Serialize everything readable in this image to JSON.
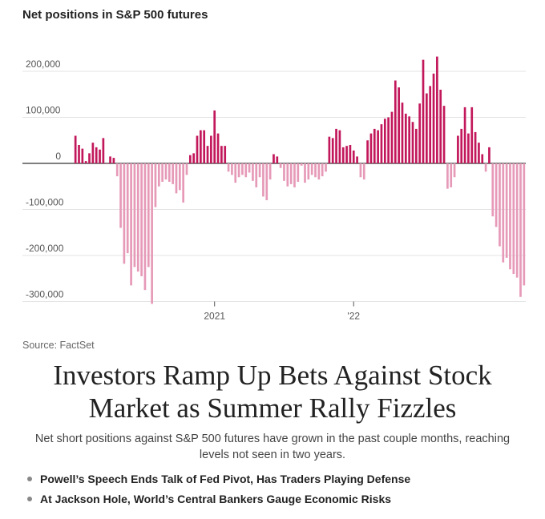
{
  "chart_data": {
    "type": "bar",
    "title": "Net positions in S&P 500 futures",
    "ylim": [
      -300000,
      240000
    ],
    "yticks": [
      {
        "value": 200000,
        "label": "200,000"
      },
      {
        "value": 100000,
        "label": "100,000"
      },
      {
        "value": 0,
        "label": "0"
      },
      {
        "value": -100000,
        "label": "-100,000"
      },
      {
        "value": -200000,
        "label": "-200,000"
      },
      {
        "value": -300000,
        "label": "-300,000"
      }
    ],
    "xticks": [
      {
        "index": 40,
        "label": "2021"
      },
      {
        "index": 80,
        "label": "'22"
      }
    ],
    "colors": {
      "positive": "#c2185b",
      "negative": "#e69ab8"
    },
    "values": [
      60000,
      40000,
      32000,
      5000,
      22000,
      45000,
      35000,
      30000,
      55000,
      0,
      15000,
      12000,
      -28000,
      -140000,
      -218000,
      -195000,
      -265000,
      -225000,
      -235000,
      -245000,
      -275000,
      -225000,
      -305000,
      -95000,
      -50000,
      -40000,
      -35000,
      -40000,
      -45000,
      -65000,
      -58000,
      -85000,
      -25000,
      18000,
      22000,
      60000,
      72000,
      72000,
      38000,
      60000,
      115000,
      65000,
      38000,
      38000,
      -18000,
      -25000,
      -42000,
      -30000,
      -25000,
      -30000,
      -20000,
      -38000,
      -52000,
      -30000,
      -72000,
      -80000,
      -35000,
      20000,
      15000,
      -10000,
      -38000,
      -50000,
      -45000,
      -52000,
      -40000,
      -5000,
      -42000,
      -35000,
      -25000,
      -30000,
      -35000,
      -28000,
      -18000,
      58000,
      55000,
      75000,
      72000,
      35000,
      38000,
      40000,
      28000,
      15000,
      -30000,
      -35000,
      50000,
      65000,
      75000,
      72000,
      85000,
      97000,
      100000,
      112000,
      180000,
      165000,
      132000,
      108000,
      102000,
      90000,
      75000,
      130000,
      225000,
      152000,
      168000,
      195000,
      232000,
      160000,
      125000,
      -55000,
      -52000,
      -30000,
      60000,
      75000,
      122000,
      65000,
      122000,
      68000,
      45000,
      20000,
      -18000,
      35000,
      -115000,
      -138000,
      -180000,
      -215000,
      -205000,
      -230000,
      -240000,
      -248000,
      -290000,
      -265000
    ]
  },
  "source": "Source: FactSet",
  "headline": "Investors Ramp Up Bets Against Stock Market as Summer Rally Fizzles",
  "dek": "Net short positions against S&P 500 futures have grown in the past couple months, reaching levels not seen in two years.",
  "related_links": [
    {
      "text": "Powell’s Speech Ends Talk of Fed Pivot, Has Traders Playing Defense"
    },
    {
      "text": "At Jackson Hole, World’s Central Bankers Gauge Economic Risks"
    }
  ]
}
